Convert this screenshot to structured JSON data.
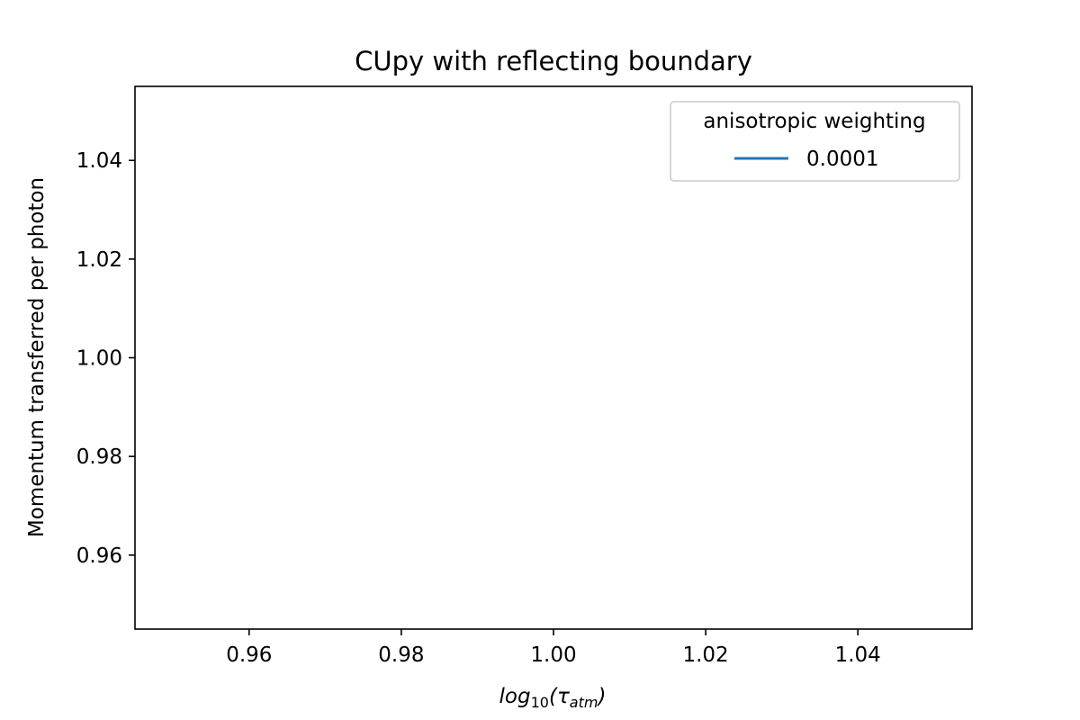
{
  "chart_data": {
    "type": "line",
    "title": "CUpy with reflecting boundary",
    "xlabel": {
      "base": "log",
      "base_sub": "10",
      "open": "(τ",
      "var_sub": "atm",
      "close": ")"
    },
    "ylabel": "Momentum transferred per photon",
    "xlim": [
      0.945,
      1.055
    ],
    "ylim": [
      0.945,
      1.055
    ],
    "xticks": [
      0.96,
      0.98,
      1.0,
      1.02,
      1.04
    ],
    "xtick_labels": [
      "0.96",
      "0.98",
      "1.00",
      "1.02",
      "1.04"
    ],
    "yticks": [
      0.96,
      0.98,
      1.0,
      1.02,
      1.04
    ],
    "ytick_labels": [
      "0.96",
      "0.98",
      "1.00",
      "1.02",
      "1.04"
    ],
    "grid": false,
    "legend": {
      "title": "anisotropic weighting",
      "placement": "top-right"
    },
    "series": [
      {
        "name": "0.0001",
        "color": "#1f77b4",
        "x": [],
        "y": []
      }
    ]
  }
}
